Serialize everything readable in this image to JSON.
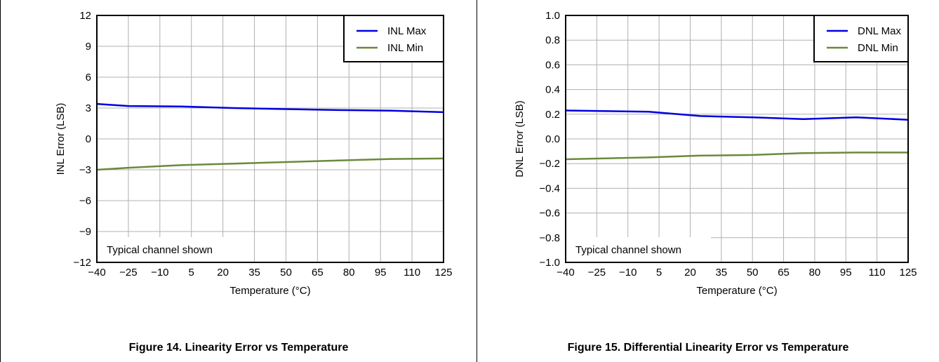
{
  "figures": [
    {
      "caption": "Figure 14. Linearity Error vs Temperature",
      "chart_data": {
        "type": "line",
        "title": "",
        "xlabel": "Temperature (°C)",
        "ylabel": "INL Error (LSB)",
        "x": [
          -40,
          -25,
          -10,
          5,
          20,
          35,
          50,
          65,
          80,
          95,
          110,
          125
        ],
        "xticks": [
          "−40",
          "−25",
          "−10",
          "5",
          "20",
          "35",
          "50",
          "65",
          "80",
          "95",
          "110",
          "125"
        ],
        "xlim": [
          -40,
          125
        ],
        "ylim": [
          -12,
          12
        ],
        "yticks": [
          -12,
          -9,
          -6,
          -3,
          0,
          3,
          6,
          9,
          12
        ],
        "yticklabels": [
          "−12",
          "−9",
          "−6",
          "−3",
          "0",
          "3",
          "6",
          "9",
          "12"
        ],
        "grid": true,
        "legend_position": "top-right",
        "annotation": "Typical channel shown",
        "series": [
          {
            "name": "INL Max",
            "color": "#0000e0",
            "points": [
              [
                -40,
                3.4
              ],
              [
                -25,
                3.2
              ],
              [
                0,
                3.15
              ],
              [
                25,
                3.0
              ],
              [
                50,
                2.9
              ],
              [
                75,
                2.8
              ],
              [
                100,
                2.75
              ],
              [
                125,
                2.6
              ]
            ]
          },
          {
            "name": "INL Min",
            "color": "#6a8a3a",
            "points": [
              [
                -40,
                -3.0
              ],
              [
                -25,
                -2.8
              ],
              [
                0,
                -2.55
              ],
              [
                25,
                -2.4
              ],
              [
                50,
                -2.25
              ],
              [
                75,
                -2.1
              ],
              [
                100,
                -1.95
              ],
              [
                125,
                -1.9
              ]
            ]
          }
        ]
      }
    },
    {
      "caption": "Figure 15. Differential Linearity Error vs Temperature",
      "chart_data": {
        "type": "line",
        "title": "",
        "xlabel": "Temperature (°C)",
        "ylabel": "DNL Error (LSB)",
        "x": [
          -40,
          -25,
          -10,
          5,
          20,
          35,
          50,
          65,
          80,
          95,
          110,
          125
        ],
        "xticks": [
          "−40",
          "−25",
          "−10",
          "5",
          "20",
          "35",
          "50",
          "65",
          "80",
          "95",
          "110",
          "125"
        ],
        "xlim": [
          -40,
          125
        ],
        "ylim": [
          -1.0,
          1.0
        ],
        "yticks": [
          -1.0,
          -0.8,
          -0.6,
          -0.4,
          -0.2,
          0.0,
          0.2,
          0.4,
          0.6,
          0.8,
          1.0
        ],
        "yticklabels": [
          "−1.0",
          "−0.8",
          "−0.6",
          "−0.4",
          "−0.2",
          "0.0",
          "0.2",
          "0.4",
          "0.6",
          "0.8",
          "1.0"
        ],
        "grid": true,
        "legend_position": "top-right",
        "annotation": "Typical channel shown",
        "series": [
          {
            "name": "DNL Max",
            "color": "#0000e0",
            "points": [
              [
                -40,
                0.23
              ],
              [
                0,
                0.22
              ],
              [
                25,
                0.185
              ],
              [
                50,
                0.175
              ],
              [
                75,
                0.16
              ],
              [
                100,
                0.175
              ],
              [
                125,
                0.155
              ]
            ]
          },
          {
            "name": "DNL Min",
            "color": "#6a8a3a",
            "points": [
              [
                -40,
                -0.165
              ],
              [
                0,
                -0.15
              ],
              [
                25,
                -0.135
              ],
              [
                50,
                -0.13
              ],
              [
                75,
                -0.115
              ],
              [
                100,
                -0.11
              ],
              [
                125,
                -0.11
              ]
            ]
          }
        ]
      }
    }
  ]
}
